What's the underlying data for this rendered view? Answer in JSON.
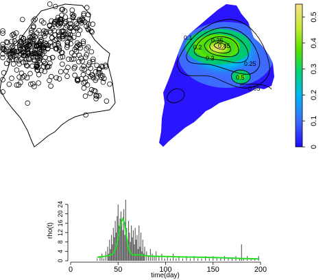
{
  "chart_data": [
    {
      "type": "scatter",
      "title": "",
      "xlabel": "",
      "ylabel": "",
      "description_marker": "open-circle",
      "point_count": 420
    },
    {
      "type": "heatmap",
      "title": "",
      "colorbar": {
        "ticks": [
          "0",
          "0.1",
          "0.2",
          "0.3",
          "0.4",
          "0.5"
        ],
        "range": [
          0,
          0.55
        ],
        "colors": [
          "#1a0dff",
          "#3d6bff",
          "#00b5f0",
          "#00d27a",
          "#58e000",
          "#c8ea3a",
          "#f7e08a"
        ]
      },
      "contour_labels": [
        "0.1",
        "0.2",
        "0.25",
        "0.3",
        "0.35",
        "0.45",
        "0.5",
        "0.05"
      ]
    },
    {
      "type": "bar",
      "title": "",
      "xlabel": "time(day)",
      "ylabel": "rho(t)",
      "xlim": [
        0,
        200
      ],
      "ylim": [
        0,
        26
      ],
      "xticks": [
        "0",
        "50",
        "100",
        "150",
        "200"
      ],
      "yticks": [
        "0",
        "4",
        "8",
        "12",
        "16",
        "20",
        "24"
      ],
      "line_color": "#22dd22",
      "bar_color": "#555555",
      "bars": [
        {
          "x": 28,
          "y": 1
        },
        {
          "x": 31,
          "y": 2
        },
        {
          "x": 33,
          "y": 3
        },
        {
          "x": 35,
          "y": 1
        },
        {
          "x": 37,
          "y": 4
        },
        {
          "x": 39,
          "y": 6
        },
        {
          "x": 40,
          "y": 3
        },
        {
          "x": 41,
          "y": 9
        },
        {
          "x": 42,
          "y": 5
        },
        {
          "x": 43,
          "y": 11
        },
        {
          "x": 44,
          "y": 7
        },
        {
          "x": 45,
          "y": 14
        },
        {
          "x": 46,
          "y": 10
        },
        {
          "x": 47,
          "y": 17
        },
        {
          "x": 48,
          "y": 12
        },
        {
          "x": 49,
          "y": 19
        },
        {
          "x": 50,
          "y": 24
        },
        {
          "x": 51,
          "y": 15
        },
        {
          "x": 52,
          "y": 18
        },
        {
          "x": 53,
          "y": 21
        },
        {
          "x": 54,
          "y": 16
        },
        {
          "x": 55,
          "y": 13
        },
        {
          "x": 56,
          "y": 22
        },
        {
          "x": 57,
          "y": 11
        },
        {
          "x": 58,
          "y": 26
        },
        {
          "x": 59,
          "y": 14
        },
        {
          "x": 60,
          "y": 9
        },
        {
          "x": 61,
          "y": 17
        },
        {
          "x": 62,
          "y": 12
        },
        {
          "x": 63,
          "y": 8
        },
        {
          "x": 64,
          "y": 15
        },
        {
          "x": 65,
          "y": 10
        },
        {
          "x": 66,
          "y": 13
        },
        {
          "x": 67,
          "y": 7
        },
        {
          "x": 68,
          "y": 14
        },
        {
          "x": 69,
          "y": 9
        },
        {
          "x": 70,
          "y": 11
        },
        {
          "x": 71,
          "y": 5
        },
        {
          "x": 72,
          "y": 15
        },
        {
          "x": 73,
          "y": 6
        },
        {
          "x": 74,
          "y": 12
        },
        {
          "x": 75,
          "y": 4
        },
        {
          "x": 76,
          "y": 9
        },
        {
          "x": 77,
          "y": 3
        },
        {
          "x": 78,
          "y": 6
        },
        {
          "x": 80,
          "y": 4
        },
        {
          "x": 82,
          "y": 2
        },
        {
          "x": 84,
          "y": 5
        },
        {
          "x": 86,
          "y": 3
        },
        {
          "x": 88,
          "y": 2
        },
        {
          "x": 90,
          "y": 4
        },
        {
          "x": 93,
          "y": 2
        },
        {
          "x": 96,
          "y": 3
        },
        {
          "x": 99,
          "y": 1
        },
        {
          "x": 102,
          "y": 2
        },
        {
          "x": 105,
          "y": 1
        },
        {
          "x": 108,
          "y": 3
        },
        {
          "x": 111,
          "y": 1
        },
        {
          "x": 114,
          "y": 2
        },
        {
          "x": 118,
          "y": 1
        },
        {
          "x": 122,
          "y": 2
        },
        {
          "x": 126,
          "y": 1
        },
        {
          "x": 130,
          "y": 2
        },
        {
          "x": 134,
          "y": 1
        },
        {
          "x": 138,
          "y": 1
        },
        {
          "x": 142,
          "y": 2
        },
        {
          "x": 146,
          "y": 1
        },
        {
          "x": 150,
          "y": 2
        },
        {
          "x": 154,
          "y": 1
        },
        {
          "x": 158,
          "y": 1
        },
        {
          "x": 162,
          "y": 2
        },
        {
          "x": 166,
          "y": 1
        },
        {
          "x": 170,
          "y": 1
        },
        {
          "x": 174,
          "y": 2
        },
        {
          "x": 178,
          "y": 1
        },
        {
          "x": 180,
          "y": 7
        },
        {
          "x": 182,
          "y": 1
        },
        {
          "x": 186,
          "y": 2
        },
        {
          "x": 190,
          "y": 1
        },
        {
          "x": 194,
          "y": 1
        },
        {
          "x": 198,
          "y": 2
        }
      ],
      "line": [
        {
          "x": 28,
          "y": 1.5
        },
        {
          "x": 35,
          "y": 1.8
        },
        {
          "x": 40,
          "y": 2.2
        },
        {
          "x": 45,
          "y": 3
        },
        {
          "x": 48,
          "y": 6
        },
        {
          "x": 51,
          "y": 12
        },
        {
          "x": 53,
          "y": 16
        },
        {
          "x": 55,
          "y": 18
        },
        {
          "x": 57,
          "y": 16
        },
        {
          "x": 59,
          "y": 10
        },
        {
          "x": 61,
          "y": 5
        },
        {
          "x": 64,
          "y": 2.8
        },
        {
          "x": 68,
          "y": 2.4
        },
        {
          "x": 72,
          "y": 2.6
        },
        {
          "x": 78,
          "y": 2.2
        },
        {
          "x": 85,
          "y": 2
        },
        {
          "x": 100,
          "y": 1.8
        },
        {
          "x": 120,
          "y": 1.6
        },
        {
          "x": 140,
          "y": 1.5
        },
        {
          "x": 160,
          "y": 1.3
        },
        {
          "x": 180,
          "y": 1
        },
        {
          "x": 198,
          "y": 0.8
        }
      ]
    }
  ]
}
